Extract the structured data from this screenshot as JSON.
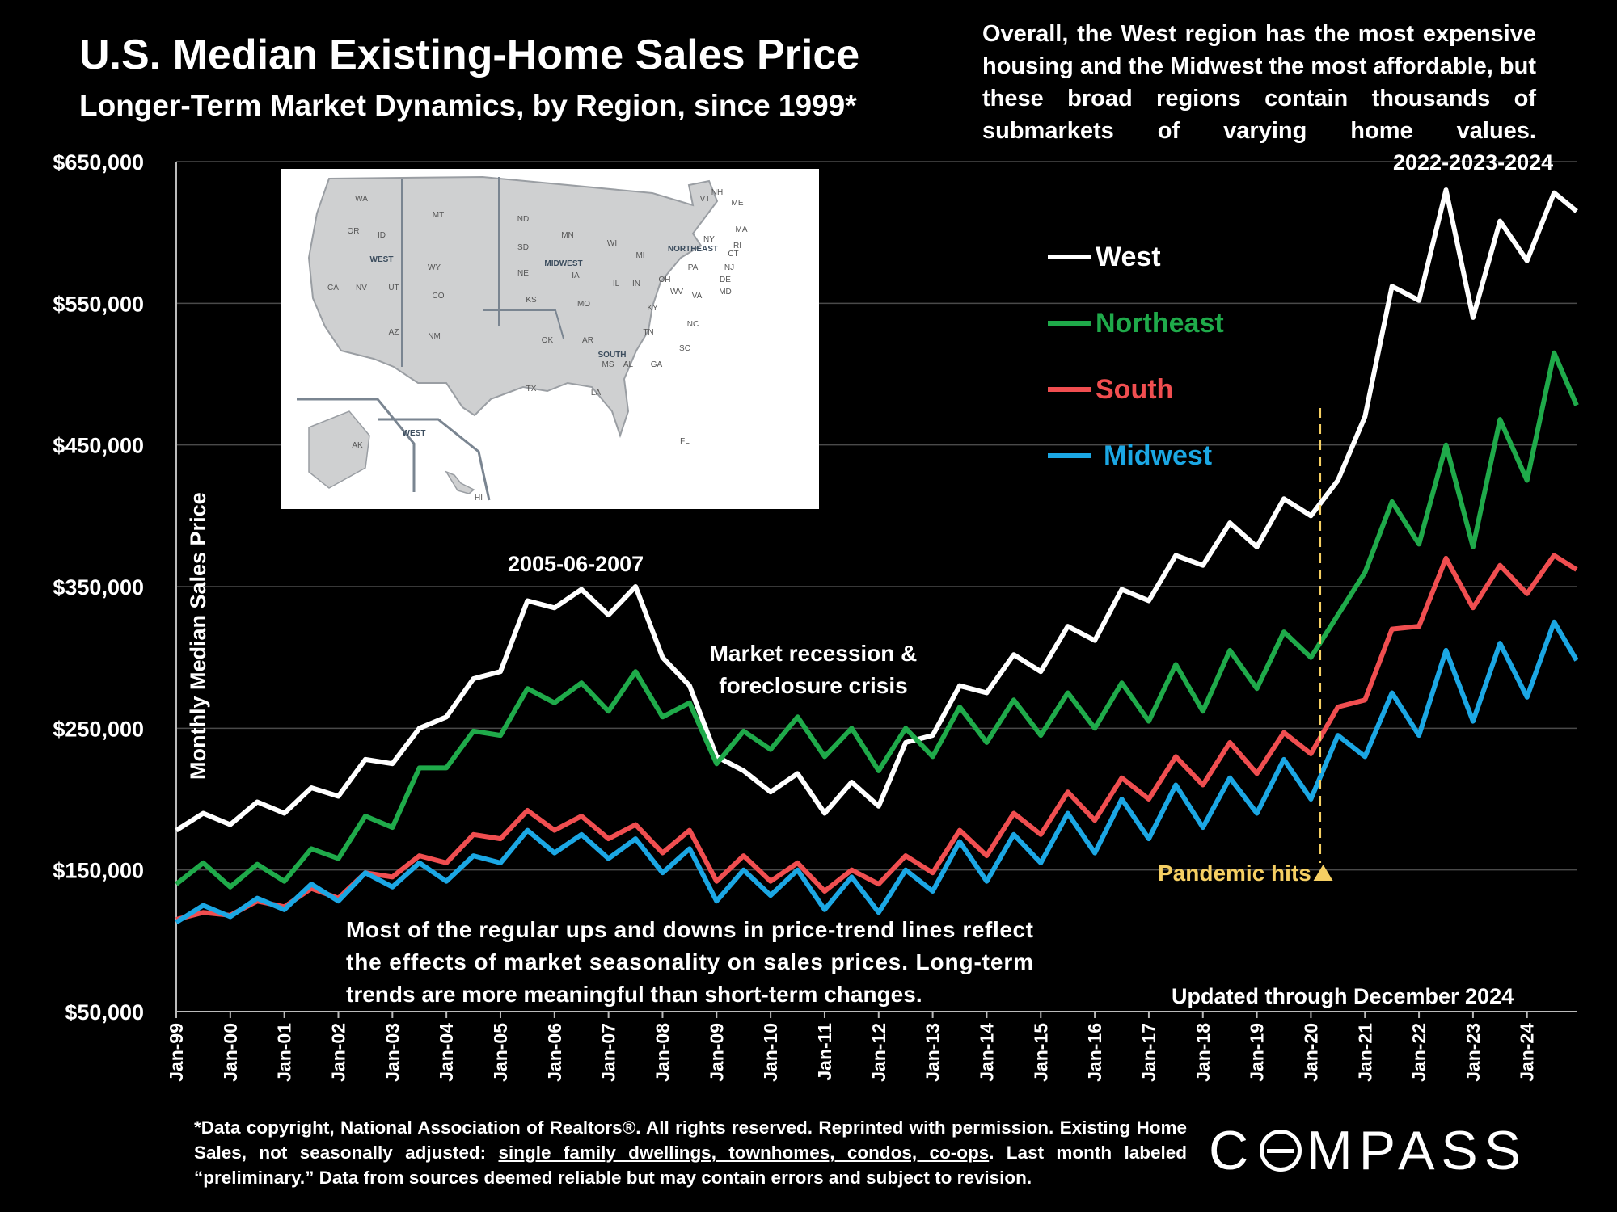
{
  "title": "U.S. Median Existing-Home Sales Price",
  "subtitle": "Longer-Term Market Dynamics, by Region, since 1999*",
  "overall_note": "Overall, the West region has the most expensive housing and the Midwest the most affordable, but these broad regions contain thousands of submarkets of varying home values.",
  "footnote": {
    "part1": "*Data copyright, National Association of Realtors®. All rights reserved. Reprinted with permission. Existing Home Sales, not seasonally adjusted: ",
    "underlined": "single family dwellings, townhomes, condos, co-ops",
    "part2": ". Last month labeled “preliminary.” Data from sources deemed reliable but may contain errors and subject to revision."
  },
  "logo": {
    "left": "C",
    "right": "MPASS"
  },
  "map": {
    "states": [
      "WA",
      "OR",
      "ID",
      "MT",
      "WY",
      "CA",
      "NV",
      "UT",
      "CO",
      "AZ",
      "NM",
      "AK",
      "HI",
      "ND",
      "SD",
      "NE",
      "KS",
      "MN",
      "IA",
      "MO",
      "WI",
      "IL",
      "IN",
      "MI",
      "OH",
      "OK",
      "TX",
      "AR",
      "LA",
      "MS",
      "AL",
      "TN",
      "KY",
      "GA",
      "FL",
      "SC",
      "NC",
      "VA",
      "WV",
      "MD",
      "DE",
      "NJ",
      "PA",
      "NY",
      "CT",
      "RI",
      "MA",
      "VT",
      "NH",
      "ME"
    ],
    "region_labels": [
      "WEST",
      "MIDWEST",
      "NORTHEAST",
      "SOUTH",
      "WEST"
    ]
  },
  "chart_data": {
    "type": "line",
    "title": "U.S. Median Existing-Home Sales Price",
    "ylabel": "Monthly Median Sales Price",
    "xlabel": "",
    "ylim": [
      50000,
      650000
    ],
    "xlim": [
      "1999-01",
      "2024-12"
    ],
    "y_ticks": [
      "$50,000",
      "$150,000",
      "$250,000",
      "$350,000",
      "$450,000",
      "$550,000",
      "$650,000"
    ],
    "y_tick_values": [
      50000,
      150000,
      250000,
      350000,
      450000,
      550000,
      650000
    ],
    "x_ticks": [
      "Jan-99",
      "Jan-00",
      "Jan-01",
      "Jan-02",
      "Jan-03",
      "Jan-04",
      "Jan-05",
      "Jan-06",
      "Jan-07",
      "Jan-08",
      "Jan-09",
      "Jan-10",
      "Jan-11",
      "Jan-12",
      "Jan-13",
      "Jan-14",
      "Jan-15",
      "Jan-16",
      "Jan-17",
      "Jan-18",
      "Jan-19",
      "Jan-20",
      "Jan-21",
      "Jan-22",
      "Jan-23",
      "Jan-24"
    ],
    "grid": true,
    "legend": "top-right",
    "x": [
      "1999-01",
      "1999-07",
      "2000-01",
      "2000-07",
      "2001-01",
      "2001-07",
      "2002-01",
      "2002-07",
      "2003-01",
      "2003-07",
      "2004-01",
      "2004-07",
      "2005-01",
      "2005-07",
      "2006-01",
      "2006-07",
      "2007-01",
      "2007-07",
      "2008-01",
      "2008-07",
      "2009-01",
      "2009-07",
      "2010-01",
      "2010-07",
      "2011-01",
      "2011-07",
      "2012-01",
      "2012-07",
      "2013-01",
      "2013-07",
      "2014-01",
      "2014-07",
      "2015-01",
      "2015-07",
      "2016-01",
      "2016-07",
      "2017-01",
      "2017-07",
      "2018-01",
      "2018-07",
      "2019-01",
      "2019-07",
      "2020-01",
      "2020-07",
      "2021-01",
      "2021-07",
      "2022-01",
      "2022-07",
      "2023-01",
      "2023-07",
      "2024-01",
      "2024-07",
      "2024-12"
    ],
    "series": [
      {
        "name": "West",
        "color": "#ffffff",
        "values": [
          178000,
          190000,
          182000,
          198000,
          190000,
          208000,
          202000,
          228000,
          225000,
          250000,
          258000,
          285000,
          290000,
          340000,
          335000,
          348000,
          330000,
          350000,
          300000,
          280000,
          230000,
          220000,
          205000,
          218000,
          190000,
          212000,
          195000,
          240000,
          245000,
          280000,
          275000,
          302000,
          290000,
          322000,
          312000,
          348000,
          340000,
          372000,
          365000,
          395000,
          378000,
          412000,
          400000,
          425000,
          470000,
          562000,
          552000,
          630000,
          540000,
          608000,
          580000,
          628000,
          615000
        ]
      },
      {
        "name": "Northeast",
        "color": "#1faa4a",
        "values": [
          140000,
          155000,
          138000,
          154000,
          142000,
          165000,
          158000,
          188000,
          180000,
          222000,
          222000,
          248000,
          245000,
          278000,
          268000,
          282000,
          262000,
          290000,
          258000,
          268000,
          225000,
          248000,
          235000,
          258000,
          230000,
          250000,
          220000,
          250000,
          230000,
          265000,
          240000,
          270000,
          245000,
          275000,
          250000,
          282000,
          255000,
          295000,
          262000,
          305000,
          278000,
          318000,
          300000,
          330000,
          360000,
          410000,
          380000,
          450000,
          378000,
          468000,
          425000,
          515000,
          478000
        ]
      },
      {
        "name": "South",
        "color": "#f04e50",
        "values": [
          115000,
          120000,
          118000,
          128000,
          124000,
          137000,
          130000,
          148000,
          145000,
          160000,
          155000,
          175000,
          172000,
          192000,
          178000,
          188000,
          172000,
          182000,
          162000,
          178000,
          142000,
          160000,
          142000,
          155000,
          135000,
          150000,
          140000,
          160000,
          148000,
          178000,
          160000,
          190000,
          175000,
          205000,
          185000,
          215000,
          200000,
          230000,
          210000,
          240000,
          218000,
          247000,
          232000,
          265000,
          270000,
          320000,
          322000,
          370000,
          335000,
          365000,
          345000,
          372000,
          362000
        ]
      },
      {
        "name": "Midwest",
        "color": "#1ba7e4",
        "values": [
          113000,
          125000,
          117000,
          130000,
          122000,
          140000,
          128000,
          148000,
          138000,
          155000,
          142000,
          160000,
          155000,
          178000,
          162000,
          175000,
          158000,
          172000,
          148000,
          165000,
          128000,
          150000,
          132000,
          150000,
          122000,
          145000,
          120000,
          150000,
          135000,
          170000,
          142000,
          175000,
          155000,
          190000,
          162000,
          200000,
          172000,
          210000,
          180000,
          215000,
          190000,
          228000,
          200000,
          245000,
          230000,
          275000,
          245000,
          305000,
          255000,
          310000,
          272000,
          325000,
          298000
        ]
      }
    ],
    "annotations": {
      "peak_2005": "2005-06-2007",
      "recession": [
        "Market recession &",
        "foreclosure crisis"
      ],
      "recent": "2022-2023-2024",
      "pandemic": "Pandemic hits",
      "seasonality": [
        "Most of the regular ups and downs in price-trend lines reflect",
        "the effects of market seasonality on sales prices. Long-term",
        "trends are more meaningful than short-term changes."
      ],
      "updated": "Updated through December 2024"
    },
    "pandemic_date": "2020-03"
  }
}
